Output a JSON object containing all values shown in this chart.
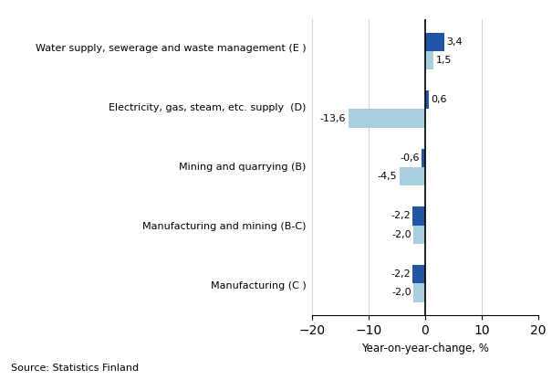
{
  "categories": [
    "Manufacturing (C )",
    "Manufacturing and mining (B-C)",
    "Mining and quarrying (B)",
    "Electricity, gas, steam, etc. supply  (D)",
    "Water supply, sewerage and waste management (E )"
  ],
  "series1_values": [
    -2.2,
    -2.2,
    -0.6,
    0.6,
    3.4
  ],
  "series2_values": [
    -2.0,
    -2.0,
    -4.5,
    -13.6,
    1.5
  ],
  "color1": "#2255a4",
  "color2": "#a8cfe0",
  "xlabel": "Year-on-year-change, %",
  "xlim": [
    -20,
    20
  ],
  "xticks": [
    -20,
    -10,
    0,
    10,
    20
  ],
  "source_text": "Source: Statistics Finland",
  "bar_height": 0.32
}
